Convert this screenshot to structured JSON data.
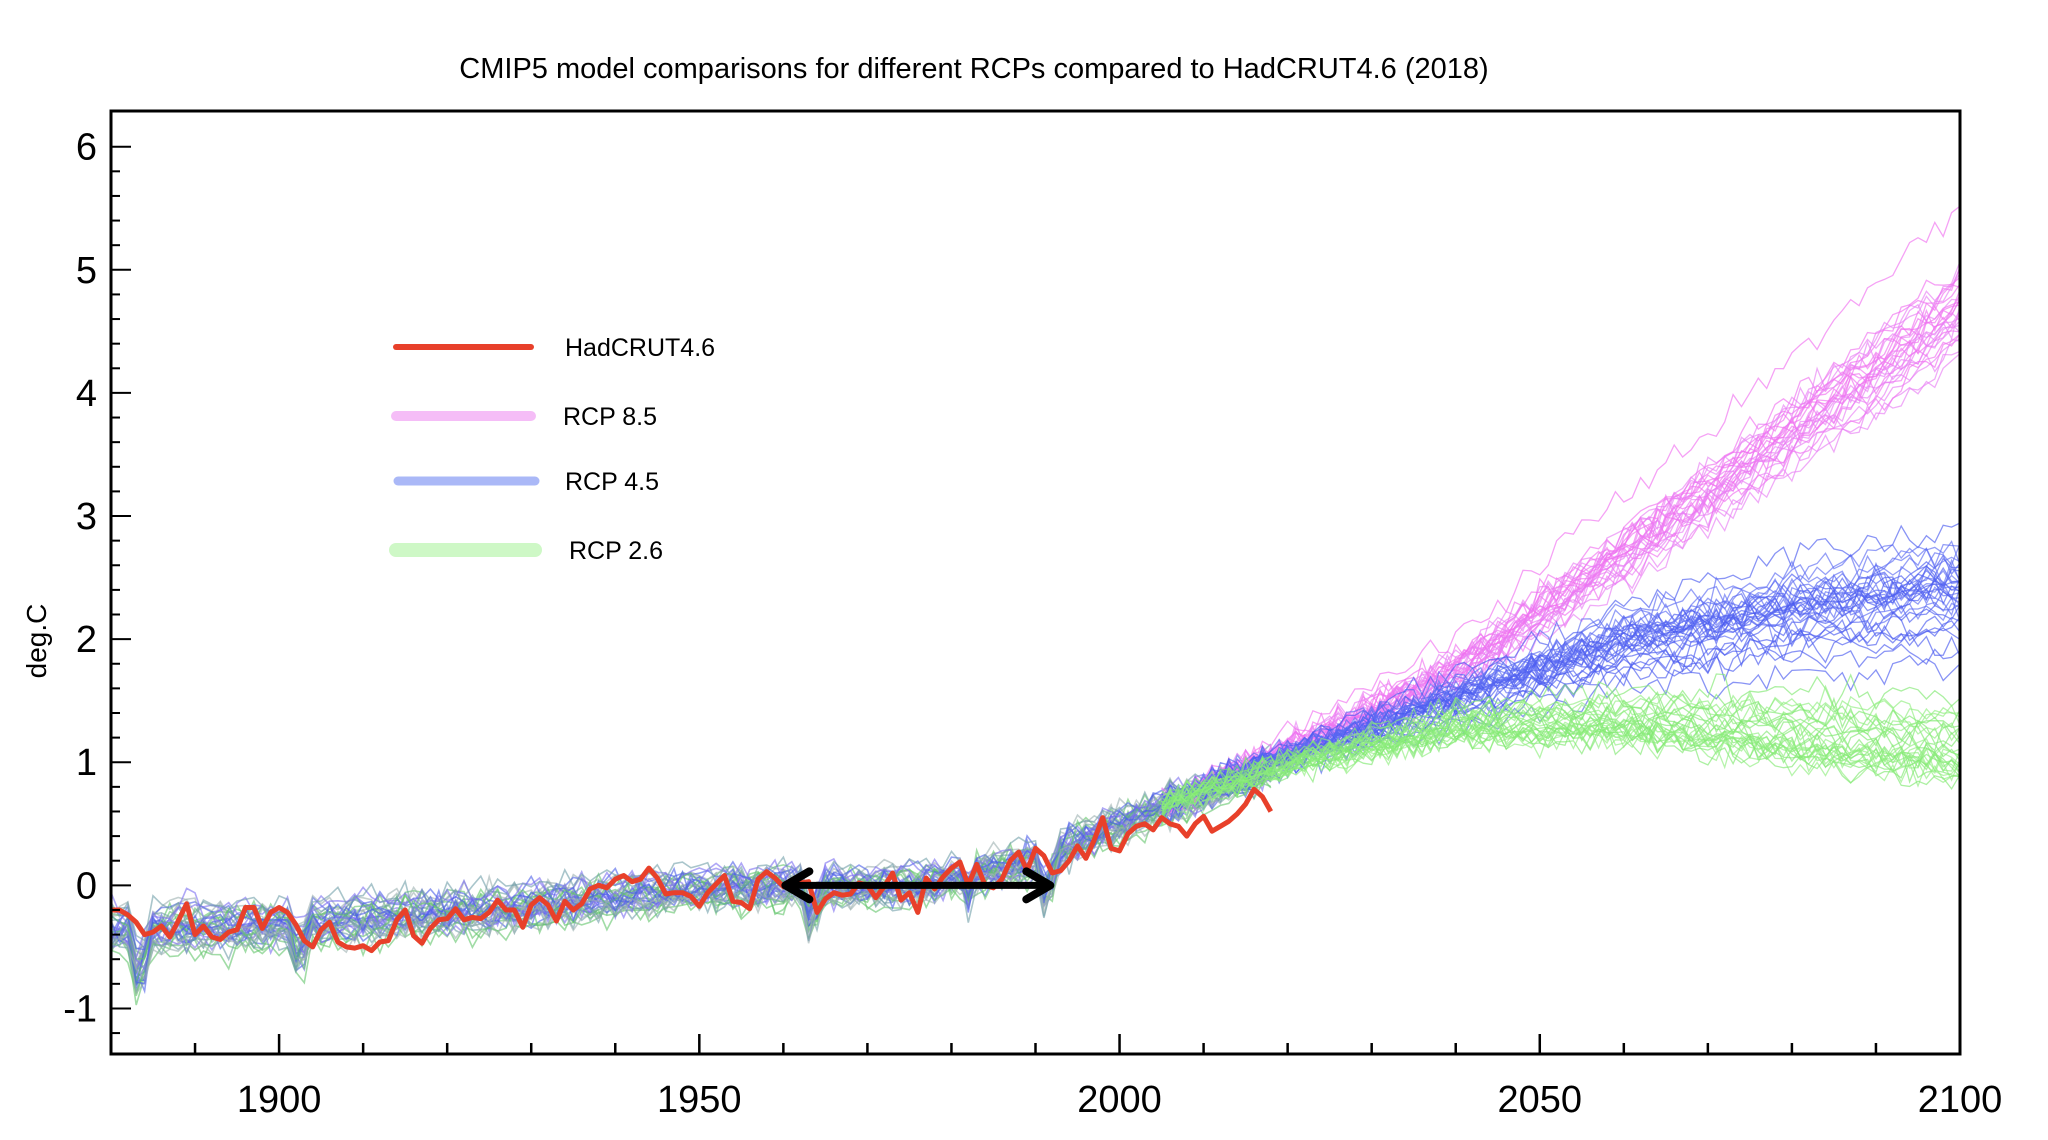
{
  "chart_data": {
    "type": "line",
    "title": "CMIP5 model comparisons for different RCPs compared to HadCRUT4.6 (2018)",
    "xlabel": "",
    "ylabel": "deg.C",
    "xlim": [
      1880,
      2100
    ],
    "ylim": [
      -1.37,
      6.29
    ],
    "x_ticks": [
      1900,
      1950,
      2000,
      2050,
      2100
    ],
    "x_tick_labels": [
      "1900",
      "1950",
      "2000",
      "2050",
      "2100"
    ],
    "y_ticks": [
      -1,
      0,
      1,
      2,
      3,
      4,
      5,
      6
    ],
    "y_tick_labels": [
      "-1",
      "0",
      "1",
      "2",
      "3",
      "4",
      "5",
      "6"
    ],
    "grid": false,
    "legend_placement": "upper-left",
    "legend": [
      {
        "label": "HadCRUT4.6",
        "color": "#e8402a"
      },
      {
        "label": "RCP 8.5",
        "color": "#f5bdf7"
      },
      {
        "label": "RCP 4.5",
        "color": "#aab8f7"
      },
      {
        "label": "RCP 2.6",
        "color": "#cef8c6"
      }
    ],
    "annotation_arrow": {
      "x_start": 1960,
      "x_end": 1992,
      "y": 0,
      "color": "#000000"
    },
    "observations": {
      "name": "HadCRUT4.6",
      "color": "#e8402a",
      "x_start": 1880,
      "values": [
        -0.2,
        -0.2,
        -0.24,
        -0.3,
        -0.4,
        -0.38,
        -0.33,
        -0.42,
        -0.29,
        -0.15,
        -0.4,
        -0.33,
        -0.42,
        -0.44,
        -0.38,
        -0.36,
        -0.18,
        -0.18,
        -0.35,
        -0.22,
        -0.18,
        -0.22,
        -0.32,
        -0.45,
        -0.5,
        -0.36,
        -0.3,
        -0.46,
        -0.5,
        -0.51,
        -0.49,
        -0.53,
        -0.46,
        -0.45,
        -0.28,
        -0.2,
        -0.41,
        -0.47,
        -0.35,
        -0.28,
        -0.27,
        -0.19,
        -0.28,
        -0.26,
        -0.27,
        -0.22,
        -0.12,
        -0.2,
        -0.2,
        -0.34,
        -0.16,
        -0.1,
        -0.16,
        -0.29,
        -0.13,
        -0.2,
        -0.15,
        -0.03,
        0.0,
        -0.02,
        0.05,
        0.08,
        0.03,
        0.05,
        0.14,
        0.06,
        -0.07,
        -0.06,
        -0.06,
        -0.09,
        -0.17,
        -0.06,
        0.01,
        0.08,
        -0.13,
        -0.14,
        -0.19,
        0.05,
        0.11,
        0.06,
        -0.01,
        0.04,
        0.02,
        0.03,
        -0.22,
        -0.11,
        -0.06,
        -0.08,
        -0.07,
        0.02,
        0.0,
        -0.1,
        -0.01,
        0.1,
        -0.12,
        -0.06,
        -0.22,
        0.06,
        -0.03,
        0.07,
        0.14,
        0.19,
        0.0,
        0.17,
        0.0,
        -0.02,
        0.05,
        0.2,
        0.27,
        0.12,
        0.3,
        0.24,
        0.1,
        0.12,
        0.2,
        0.32,
        0.22,
        0.37,
        0.55,
        0.3,
        0.28,
        0.42,
        0.48,
        0.5,
        0.45,
        0.55,
        0.5,
        0.48,
        0.4,
        0.5,
        0.56,
        0.44,
        0.48,
        0.52,
        0.58,
        0.66,
        0.78,
        0.72,
        0.6
      ]
    },
    "model_ensembles": [
      {
        "name": "historical",
        "colors": [
          "#6f9ea8",
          "#62c46a",
          "#7a6cf0",
          "#4a5ee8",
          "#9cb0b0"
        ],
        "members": 40,
        "x": [
          1880,
          1900,
          1925,
          1950,
          1975,
          1990,
          2000,
          2010,
          2018
        ],
        "mean": [
          -0.35,
          -0.32,
          -0.2,
          -0.02,
          0.0,
          0.2,
          0.5,
          0.75,
          0.95
        ],
        "spread": 0.18
      },
      {
        "name": "RCP 8.5",
        "colors": [
          "#f070f0",
          "#e880f5"
        ],
        "members": 30,
        "x": [
          2005,
          2020,
          2040,
          2060,
          2080,
          2100
        ],
        "mean": [
          0.65,
          1.1,
          1.75,
          2.7,
          3.7,
          4.7
        ],
        "spread_end": 0.65
      },
      {
        "name": "RCP 4.5",
        "colors": [
          "#4a5af0",
          "#5c6cf2"
        ],
        "members": 35,
        "x": [
          2005,
          2020,
          2040,
          2060,
          2080,
          2100
        ],
        "mean": [
          0.65,
          1.05,
          1.5,
          1.95,
          2.2,
          2.35
        ],
        "spread_end": 0.5
      },
      {
        "name": "RCP 2.6",
        "colors": [
          "#80e870",
          "#90ee80"
        ],
        "members": 28,
        "x": [
          2005,
          2020,
          2040,
          2060,
          2080,
          2100
        ],
        "mean": [
          0.65,
          1.0,
          1.3,
          1.35,
          1.25,
          1.15
        ],
        "spread_end": 0.4
      }
    ]
  }
}
